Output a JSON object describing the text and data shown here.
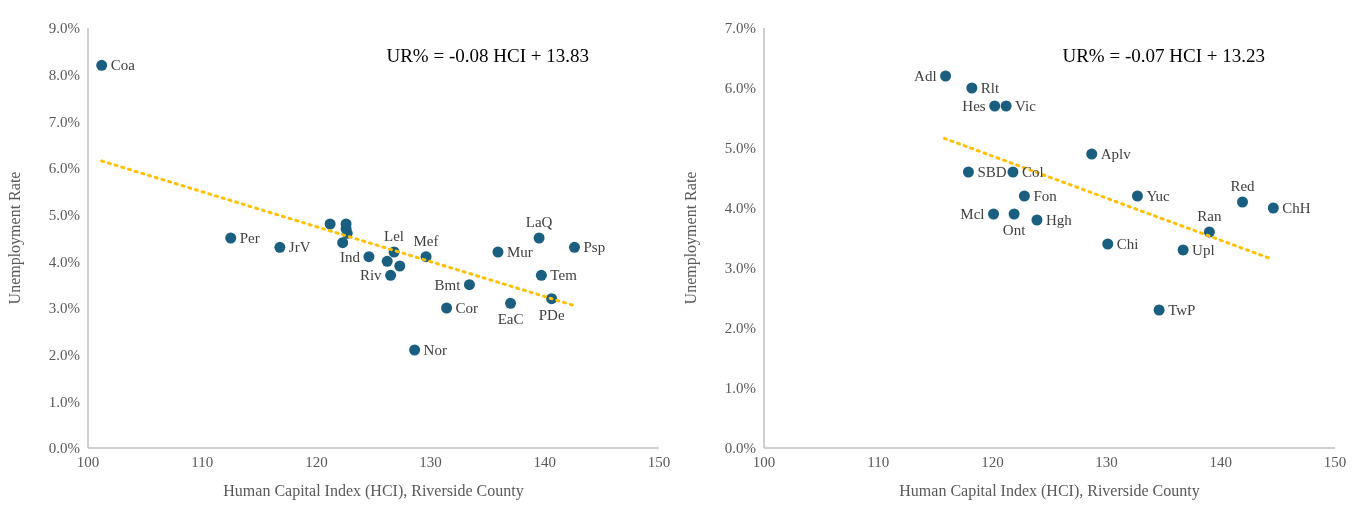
{
  "chart_data": [
    {
      "type": "scatter",
      "xlabel": "Human Capital Index (HCI), Riverside County",
      "ylabel": "Unemployment Rate",
      "xlim": [
        100,
        150
      ],
      "xticks": [
        100,
        110,
        120,
        130,
        140,
        150
      ],
      "ylim": [
        0,
        9
      ],
      "yticks": [
        {
          "value": 0,
          "label": "0.0%"
        },
        {
          "value": 1,
          "label": "1.0%"
        },
        {
          "value": 2,
          "label": "2.0%"
        },
        {
          "value": 3,
          "label": "3.0%"
        },
        {
          "value": 4,
          "label": "4.0%"
        },
        {
          "value": 5,
          "label": "5.0%"
        },
        {
          "value": 6,
          "label": "6.0%"
        },
        {
          "value": 7,
          "label": "7.0%"
        },
        {
          "value": 8,
          "label": "8.0%"
        },
        {
          "value": 9,
          "label": "9.0%"
        }
      ],
      "marker": "circle",
      "series": [
        {
          "color": "#1a5f80",
          "x": [
            101.2,
            112.5,
            116.8,
            121.2,
            122.6,
            122.6,
            122.7,
            122.3,
            124.6,
            126.2,
            126.8,
            127.3,
            126.5,
            129.6,
            133.4,
            131.4,
            137.0,
            128.6,
            135.9,
            139.5,
            142.6,
            139.7,
            140.6
          ],
          "values": [
            8.2,
            4.5,
            4.3,
            4.8,
            4.8,
            4.7,
            4.6,
            4.4,
            4.1,
            4.0,
            4.2,
            3.9,
            3.7,
            4.1,
            3.5,
            3.0,
            3.1,
            2.1,
            4.2,
            4.5,
            4.3,
            3.7,
            3.2
          ]
        },
        {
          "type": "line",
          "color": "#ffc000",
          "line_style": "dotted",
          "marker": "none",
          "x": [
            101.2,
            142.6
          ],
          "values": [
            6.15,
            3.05
          ]
        }
      ],
      "annotations": [
        "UR% = -0.08 HCI + 13.83",
        {
          "text": "Coa",
          "x": 101.2,
          "y": 8.2
        },
        {
          "text": "Per",
          "x": 112.5,
          "y": 4.5
        },
        {
          "text": "JrV",
          "x": 116.8,
          "y": 4.3
        },
        {
          "text": "Ind",
          "x": 124.6,
          "y": 4.1
        },
        {
          "text": "Lel",
          "x": 126.8,
          "y": 4.2
        },
        {
          "text": "Riv",
          "x": 126.5,
          "y": 3.7
        },
        {
          "text": "Mef",
          "x": 129.6,
          "y": 4.1
        },
        {
          "text": "Bmt",
          "x": 133.4,
          "y": 3.5
        },
        {
          "text": "Cor",
          "x": 131.4,
          "y": 3.0
        },
        {
          "text": "EaC",
          "x": 137.0,
          "y": 3.1
        },
        {
          "text": "Nor",
          "x": 128.6,
          "y": 2.1
        },
        {
          "text": "Mur",
          "x": 135.9,
          "y": 4.2
        },
        {
          "text": "LaQ",
          "x": 139.5,
          "y": 4.5
        },
        {
          "text": "Psp",
          "x": 142.6,
          "y": 4.3
        },
        {
          "text": "Tem",
          "x": 139.7,
          "y": 3.7
        },
        {
          "text": "PDe",
          "x": 140.6,
          "y": 3.2
        }
      ]
    },
    {
      "type": "scatter",
      "xlabel": "Human Capital Index (HCI), Riverside County",
      "ylabel": "Unemployment Rate",
      "xlim": [
        100,
        150
      ],
      "xticks": [
        100,
        110,
        120,
        130,
        140,
        150
      ],
      "ylim": [
        0,
        7
      ],
      "yticks": [
        {
          "value": 0,
          "label": "0.0%"
        },
        {
          "value": 1,
          "label": "1.0%"
        },
        {
          "value": 2,
          "label": "2.0%"
        },
        {
          "value": 3,
          "label": "3.0%"
        },
        {
          "value": 4,
          "label": "4.0%"
        },
        {
          "value": 5,
          "label": "5.0%"
        },
        {
          "value": 6,
          "label": "6.0%"
        },
        {
          "value": 7,
          "label": "7.0%"
        }
      ],
      "marker": "circle",
      "series": [
        {
          "color": "#1a5f80",
          "x": [
            115.9,
            118.2,
            120.2,
            121.2,
            117.9,
            121.8,
            122.8,
            120.1,
            121.9,
            123.9,
            128.7,
            132.7,
            130.1,
            134.6,
            136.7,
            139.0,
            141.9,
            144.6
          ],
          "values": [
            6.2,
            6.0,
            5.7,
            5.7,
            4.6,
            4.6,
            4.2,
            3.9,
            3.9,
            3.8,
            4.9,
            4.2,
            3.4,
            2.3,
            3.3,
            3.6,
            4.1,
            4.0
          ]
        },
        {
          "type": "line",
          "color": "#ffc000",
          "line_style": "dotted",
          "marker": "none",
          "x": [
            115.8,
            144.3
          ],
          "values": [
            5.16,
            3.16
          ]
        }
      ],
      "annotations": [
        "UR% = -0.07 HCI + 13.23",
        {
          "text": "Adl",
          "x": 115.9,
          "y": 6.2
        },
        {
          "text": "Rlt",
          "x": 118.2,
          "y": 6.0
        },
        {
          "text": "Hes",
          "x": 120.2,
          "y": 5.7
        },
        {
          "text": "Vic",
          "x": 121.2,
          "y": 5.7
        },
        {
          "text": "SBD",
          "x": 117.9,
          "y": 4.6
        },
        {
          "text": "Col",
          "x": 121.8,
          "y": 4.6
        },
        {
          "text": "Fon",
          "x": 122.8,
          "y": 4.2
        },
        {
          "text": "Mcl",
          "x": 120.1,
          "y": 3.9
        },
        {
          "text": "Ont",
          "x": 121.9,
          "y": 3.9
        },
        {
          "text": "Hgh",
          "x": 123.9,
          "y": 3.8
        },
        {
          "text": "Aplv",
          "x": 128.7,
          "y": 4.9
        },
        {
          "text": "Yuc",
          "x": 132.7,
          "y": 4.2
        },
        {
          "text": "Chi",
          "x": 130.1,
          "y": 3.4
        },
        {
          "text": "TwP",
          "x": 134.6,
          "y": 2.3
        },
        {
          "text": "Upl",
          "x": 136.7,
          "y": 3.3
        },
        {
          "text": "Ran",
          "x": 139.0,
          "y": 3.6
        },
        {
          "text": "Red",
          "x": 141.9,
          "y": 4.1
        },
        {
          "text": "ChH",
          "x": 144.6,
          "y": 4.0
        }
      ]
    }
  ]
}
